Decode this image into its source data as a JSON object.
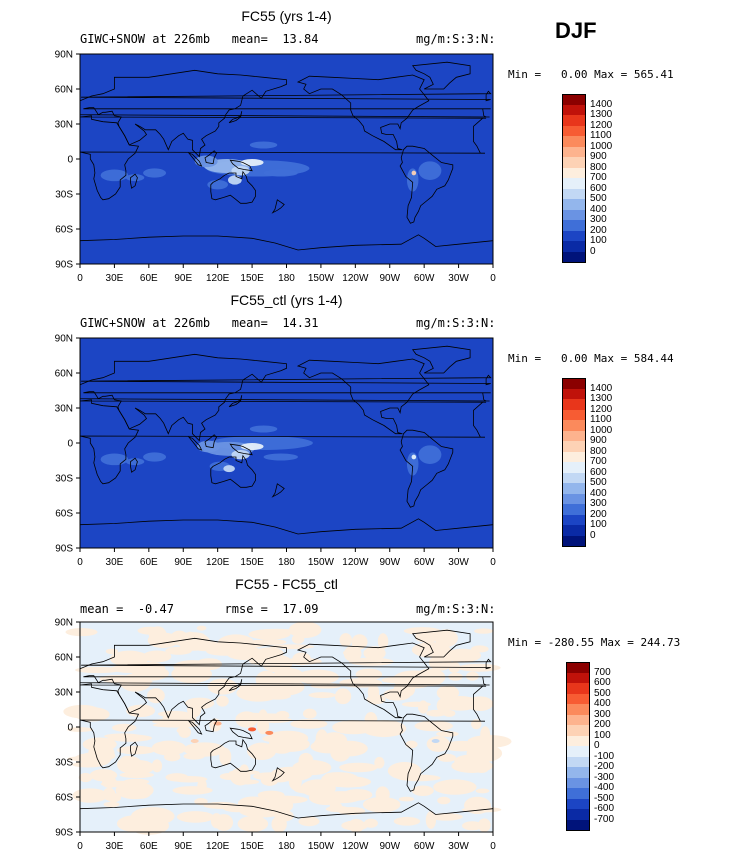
{
  "season": "DJF",
  "chart_data": [
    {
      "type": "contour-map",
      "title": "FC55 (yrs 1-4)",
      "variable": "GIWC+SNOW at 226mb",
      "stat_label": "mean=",
      "stat_value": "13.84",
      "units": "mg/m:S:3:N:",
      "min_label": "Min =",
      "min": "0.00",
      "max_label": "Max =",
      "max": "565.41",
      "levels": [
        "1400",
        "1300",
        "1200",
        "1100",
        "1000",
        "900",
        "800",
        "700",
        "600",
        "500",
        "400",
        "300",
        "200",
        "100",
        "0"
      ],
      "colors": [
        "#8b0000",
        "#c0120a",
        "#e8361b",
        "#f75c33",
        "#fb8a5c",
        "#fdb38e",
        "#fdd2b5",
        "#fdeede",
        "#e5f0fa",
        "#c2d8f4",
        "#93b6ec",
        "#6a93e3",
        "#3f6fd8",
        "#1c45c4",
        "#0a2aa5",
        "#00137a"
      ],
      "xticks": [
        "0",
        "30E",
        "60E",
        "90E",
        "120E",
        "150E",
        "180",
        "150W",
        "120W",
        "90W",
        "60W",
        "30W",
        "0"
      ],
      "yticks": [
        "90N",
        "60N",
        "30N",
        "0",
        "30S",
        "60S",
        "90S"
      ]
    },
    {
      "type": "contour-map",
      "title": "FC55_ctl (yrs 1-4)",
      "variable": "GIWC+SNOW at 226mb",
      "stat_label": "mean=",
      "stat_value": "14.31",
      "units": "mg/m:S:3:N:",
      "min_label": "Min =",
      "min": "0.00",
      "max_label": "Max =",
      "max": "584.44",
      "levels": [
        "1400",
        "1300",
        "1200",
        "1100",
        "1000",
        "900",
        "800",
        "700",
        "600",
        "500",
        "400",
        "300",
        "200",
        "100",
        "0"
      ],
      "colors": [
        "#8b0000",
        "#c0120a",
        "#e8361b",
        "#f75c33",
        "#fb8a5c",
        "#fdb38e",
        "#fdd2b5",
        "#fdeede",
        "#e5f0fa",
        "#c2d8f4",
        "#93b6ec",
        "#6a93e3",
        "#3f6fd8",
        "#1c45c4",
        "#0a2aa5",
        "#00137a"
      ],
      "xticks": [
        "0",
        "30E",
        "60E",
        "90E",
        "120E",
        "150E",
        "180",
        "150W",
        "120W",
        "90W",
        "60W",
        "30W",
        "0"
      ],
      "yticks": [
        "90N",
        "60N",
        "30N",
        "0",
        "30S",
        "60S",
        "90S"
      ]
    },
    {
      "type": "contour-map",
      "title": "FC55 - FC55_ctl",
      "variable": "mean =",
      "stat_label": "-0.47",
      "stat_value": "rmse =  17.09",
      "units": "mg/m:S:3:N:",
      "min_label": "Min =",
      "min": "-280.55",
      "max_label": "Max =",
      "max": "244.73",
      "levels": [
        "700",
        "600",
        "500",
        "400",
        "300",
        "200",
        "100",
        "0",
        "-100",
        "-200",
        "-300",
        "-400",
        "-500",
        "-600",
        "-700"
      ],
      "colors": [
        "#8b0000",
        "#c0120a",
        "#e8361b",
        "#f75c33",
        "#fb8a5c",
        "#fdb38e",
        "#fdd2b5",
        "#fdeede",
        "#e5f0fa",
        "#c2d8f4",
        "#93b6ec",
        "#6a93e3",
        "#3f6fd8",
        "#1c45c4",
        "#0a2aa5",
        "#00137a"
      ],
      "xticks": [
        "0",
        "30E",
        "60E",
        "90E",
        "120E",
        "150E",
        "180",
        "150W",
        "120W",
        "90W",
        "60W",
        "30W",
        "0"
      ],
      "yticks": [
        "90N",
        "60N",
        "30N",
        "0",
        "30S",
        "60S",
        "90S"
      ]
    }
  ]
}
